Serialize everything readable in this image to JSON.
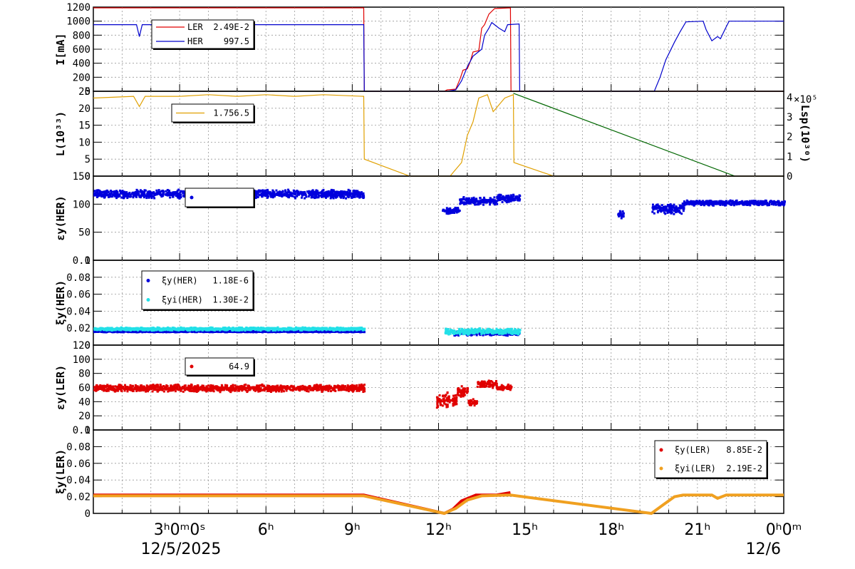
{
  "chart_data": {
    "type": "line",
    "colors": {
      "LER": "#e00000",
      "HER": "#0000cc",
      "lum": "#e0a000",
      "lsp": "#006600",
      "xi_her": "#0000dd",
      "xi_yi_her": "#22e0e8",
      "xi_ler": "#e00000",
      "xi_yi_ler": "#f0a020"
    },
    "x_axis": {
      "range_hours": [
        0,
        24
      ],
      "ticks": [
        {
          "h": 3,
          "label": "3ʰ0ᵐ0ˢ"
        },
        {
          "h": 6,
          "label": "6ʰ"
        },
        {
          "h": 9,
          "label": "9ʰ"
        },
        {
          "h": 12,
          "label": "12ʰ"
        },
        {
          "h": 15,
          "label": "15ʰ"
        },
        {
          "h": 18,
          "label": "18ʰ"
        },
        {
          "h": 21,
          "label": "21ʰ"
        },
        {
          "h": 24,
          "label": "0ʰ0ᵐ"
        }
      ],
      "date_left": "12/5/2025",
      "date_right": "12/6"
    },
    "panels": [
      {
        "id": "current",
        "ylabel": "I[mA]",
        "ylim": [
          0,
          1200
        ],
        "yticks": [
          "0",
          "200",
          "400",
          "600",
          "800",
          "1000",
          "1200"
        ],
        "legend": [
          {
            "name": "LER",
            "value": "2.49E-2",
            "color": "#e00000"
          },
          {
            "name": "HER",
            "value": "997.5",
            "color": "#0000cc"
          }
        ],
        "series": [
          {
            "name": "LER",
            "color": "#e00000",
            "points": [
              [
                0,
                1190
              ],
              [
                9.4,
                1190
              ],
              [
                9.42,
                0
              ],
              [
                12.2,
                0
              ],
              [
                12.3,
                20
              ],
              [
                12.6,
                30
              ],
              [
                12.75,
                180
              ],
              [
                12.85,
                300
              ],
              [
                13.0,
                320
              ],
              [
                13.1,
                420
              ],
              [
                13.2,
                560
              ],
              [
                13.4,
                580
              ],
              [
                13.5,
                900
              ],
              [
                13.6,
                950
              ],
              [
                13.75,
                1100
              ],
              [
                13.95,
                1180
              ],
              [
                14.5,
                1190
              ],
              [
                14.52,
                0
              ],
              [
                24,
                0
              ]
            ]
          },
          {
            "name": "HER",
            "color": "#0000cc",
            "points": [
              [
                0,
                950
              ],
              [
                1.5,
                950
              ],
              [
                1.6,
                780
              ],
              [
                1.7,
                950
              ],
              [
                9.4,
                950
              ],
              [
                9.42,
                0
              ],
              [
                12.3,
                0
              ],
              [
                12.6,
                20
              ],
              [
                12.8,
                150
              ],
              [
                13.0,
                350
              ],
              [
                13.2,
                500
              ],
              [
                13.5,
                600
              ],
              [
                13.6,
                800
              ],
              [
                13.75,
                900
              ],
              [
                13.85,
                980
              ],
              [
                14.1,
                900
              ],
              [
                14.3,
                850
              ],
              [
                14.4,
                950
              ],
              [
                14.8,
                960
              ],
              [
                14.82,
                0
              ],
              [
                19.5,
                0
              ],
              [
                19.7,
                200
              ],
              [
                19.9,
                450
              ],
              [
                20.2,
                700
              ],
              [
                20.4,
                850
              ],
              [
                20.6,
                990
              ],
              [
                21.2,
                1000
              ],
              [
                21.3,
                880
              ],
              [
                21.5,
                720
              ],
              [
                21.7,
                780
              ],
              [
                21.8,
                750
              ],
              [
                22.0,
                920
              ],
              [
                22.1,
                1000
              ],
              [
                24,
                1000
              ]
            ]
          }
        ]
      },
      {
        "id": "lum",
        "ylabel": "L(10³³)",
        "ylim": [
          0,
          25
        ],
        "yticks": [
          "0",
          "5",
          "10",
          "15",
          "20",
          "25"
        ],
        "right_axis": {
          "label": "Lsp(10³⁰)",
          "exponent": "×10⁵",
          "ylim": [
            0,
            4.3
          ],
          "ticks": [
            "0",
            "1",
            "2",
            "3",
            "4"
          ]
        },
        "legend": [
          {
            "name": "",
            "value": "1.756.5",
            "color": "#e0a000"
          }
        ],
        "series": [
          {
            "name": "L",
            "color": "#e0a000",
            "points": [
              [
                0,
                23
              ],
              [
                1.4,
                23.5
              ],
              [
                1.6,
                20.5
              ],
              [
                1.8,
                23.5
              ],
              [
                3,
                23.5
              ],
              [
                4,
                24
              ],
              [
                5,
                23.5
              ],
              [
                6,
                24
              ],
              [
                7,
                23.5
              ],
              [
                8,
                24
              ],
              [
                9.4,
                23.5
              ],
              [
                9.42,
                5
              ],
              [
                11,
                0
              ],
              [
                12.4,
                0
              ],
              [
                12.6,
                2
              ],
              [
                12.8,
                4
              ],
              [
                13.0,
                12
              ],
              [
                13.2,
                16
              ],
              [
                13.4,
                23
              ],
              [
                13.7,
                24
              ],
              [
                13.9,
                19
              ],
              [
                14.3,
                23
              ],
              [
                14.6,
                24
              ],
              [
                14.62,
                4
              ],
              [
                16.0,
                0
              ],
              [
                24,
                0
              ]
            ]
          },
          {
            "name": "Lsp",
            "color": "#006600",
            "axis": "right",
            "points": [
              [
                14.6,
                4.2
              ],
              [
                22.3,
                0
              ]
            ]
          }
        ]
      },
      {
        "id": "xi_her_scatter",
        "ylabel": "εy(HER)",
        "ylim": [
          0,
          150
        ],
        "yticks": [
          "0",
          "50",
          "100",
          "150"
        ],
        "legend": [
          {
            "name": "",
            "value": "",
            "color": "#0000dd"
          }
        ],
        "series": [
          {
            "name": "",
            "color": "#0000dd",
            "bands": [
              [
                0,
                9.4,
                118,
                8
              ],
              [
                12.1,
                12.7,
                88,
                6
              ],
              [
                12.7,
                14.0,
                105,
                8
              ],
              [
                14.0,
                14.8,
                110,
                8
              ],
              [
                18.2,
                18.4,
                82,
                8
              ],
              [
                19.4,
                20.5,
                92,
                10
              ],
              [
                20.5,
                24,
                102,
                5
              ]
            ]
          }
        ]
      },
      {
        "id": "xi_her",
        "ylabel": "ξy(HER)",
        "ylim": [
          0,
          0.1
        ],
        "yticks": [
          "0",
          "0.02",
          "0.04",
          "0.06",
          "0.08",
          "0.1"
        ],
        "legend": [
          {
            "name": "ξy(HER)",
            "value": "1.18E-6",
            "color": "#0000dd"
          },
          {
            "name": "ξyi(HER)",
            "value": "1.30E-2",
            "color": "#22e0e8"
          }
        ],
        "series": [
          {
            "name": "ξy(HER)",
            "color": "#0000dd",
            "bands": [
              [
                0,
                9.4,
                0.016,
                0.001
              ],
              [
                12.5,
                14.8,
                0.014,
                0.003
              ]
            ]
          },
          {
            "name": "ξyi(HER)",
            "color": "#22e0e8",
            "bands": [
              [
                0,
                9.4,
                0.019,
                0.002
              ],
              [
                12.2,
                14.8,
                0.016,
                0.004
              ]
            ]
          }
        ]
      },
      {
        "id": "xi_ler_scatter",
        "ylabel": "εy(LER)",
        "ylim": [
          0,
          130
        ],
        "yticks": [
          "0",
          "20",
          "40",
          "60",
          "80",
          "100",
          "120"
        ],
        "legend": [
          {
            "name": "",
            "value": "64.9",
            "color": "#e00000"
          }
        ],
        "series": [
          {
            "name": "",
            "color": "#e00000",
            "bands": [
              [
                0,
                9.4,
                64,
                6
              ],
              [
                11.9,
                12.6,
                45,
                15
              ],
              [
                12.6,
                13.0,
                58,
                10
              ],
              [
                13.0,
                13.3,
                42,
                6
              ],
              [
                13.3,
                14.0,
                70,
                6
              ],
              [
                14.0,
                14.5,
                65,
                5
              ]
            ]
          }
        ]
      },
      {
        "id": "xi_ler",
        "ylabel": "ξy(LER)",
        "ylim": [
          0,
          0.1
        ],
        "yticks": [
          "0",
          "0.02",
          "0.04",
          "0.06",
          "0.08",
          "0.1"
        ],
        "legend": [
          {
            "name": "ξy(LER)",
            "value": "8.85E-2",
            "color": "#e00000"
          },
          {
            "name": "ξyi(LER)",
            "value": "2.19E-2",
            "color": "#f0a020"
          }
        ],
        "series": [
          {
            "name": "ξy(LER)",
            "color": "#e00000",
            "points": [
              [
                0,
                0.022
              ],
              [
                9.4,
                0.022
              ],
              [
                12.2,
                0
              ],
              [
                12.5,
                0.005
              ],
              [
                12.8,
                0.015
              ],
              [
                13.3,
                0.022
              ],
              [
                14.0,
                0.022
              ],
              [
                14.5,
                0.025
              ]
            ]
          },
          {
            "name": "ξyi(LER)",
            "color": "#f0a020",
            "points": [
              [
                0,
                0.021
              ],
              [
                9.4,
                0.021
              ],
              [
                12.2,
                0
              ],
              [
                12.6,
                0.006
              ],
              [
                13.0,
                0.016
              ],
              [
                13.5,
                0.021
              ],
              [
                14.5,
                0.022
              ],
              [
                19.4,
                0
              ],
              [
                19.8,
                0.01
              ],
              [
                20.2,
                0.02
              ],
              [
                20.5,
                0.022
              ],
              [
                21.5,
                0.022
              ],
              [
                21.7,
                0.018
              ],
              [
                22.0,
                0.022
              ],
              [
                24,
                0.022
              ]
            ]
          }
        ]
      }
    ]
  }
}
